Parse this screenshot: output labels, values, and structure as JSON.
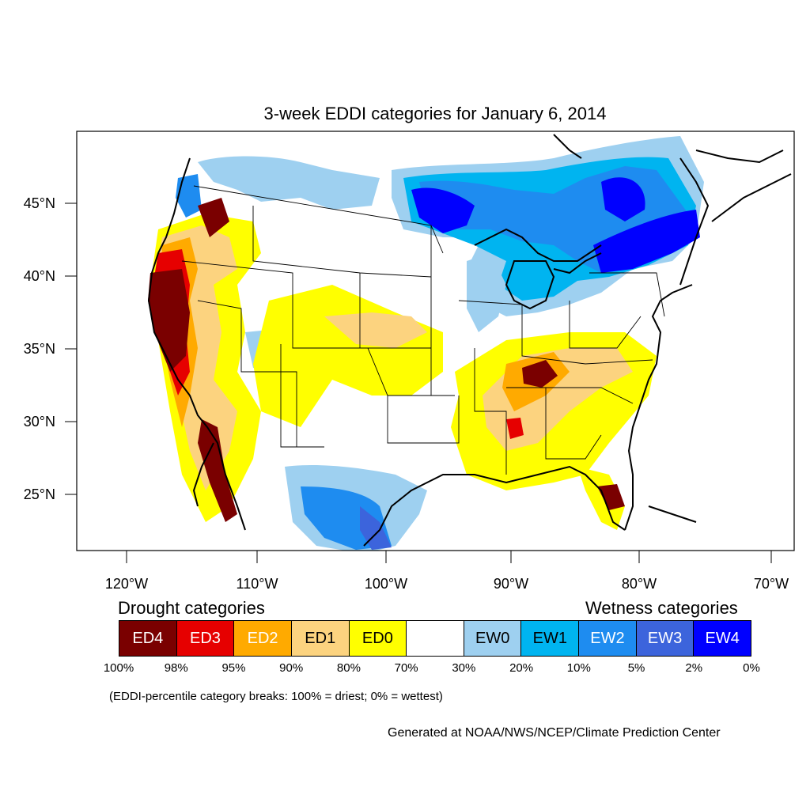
{
  "title": "3-week EDDI categories for January 6, 2014",
  "axes": {
    "lat_labels": [
      "45°N",
      "40°N",
      "35°N",
      "30°N",
      "25°N"
    ],
    "lon_labels": [
      "120°W",
      "110°W",
      "100°W",
      "90°W",
      "80°W",
      "70°W"
    ]
  },
  "legend": {
    "drought_heading": "Drought categories",
    "wetness_heading": "Wetness categories",
    "categories": [
      {
        "label": "ED4",
        "color": "#7a0000",
        "text_color": "#ffffff"
      },
      {
        "label": "ED3",
        "color": "#e60000",
        "text_color": "#ffffff"
      },
      {
        "label": "ED2",
        "color": "#ffaa00",
        "text_color": "#ffffff"
      },
      {
        "label": "ED1",
        "color": "#fcd37f",
        "text_color": "#000000"
      },
      {
        "label": "ED0",
        "color": "#ffff00",
        "text_color": "#000000"
      },
      {
        "label": "",
        "color": "#ffffff",
        "text_color": "#000000"
      },
      {
        "label": "EW0",
        "color": "#9ed0f0",
        "text_color": "#000000"
      },
      {
        "label": "EW1",
        "color": "#00b4f0",
        "text_color": "#000000"
      },
      {
        "label": "EW2",
        "color": "#1e8cf0",
        "text_color": "#ffffff"
      },
      {
        "label": "EW3",
        "color": "#3c64dc",
        "text_color": "#ffffff"
      },
      {
        "label": "EW4",
        "color": "#0000ff",
        "text_color": "#ffffff"
      }
    ],
    "breaks": [
      "100%",
      "98%",
      "95%",
      "90%",
      "80%",
      "70%",
      "30%",
      "20%",
      "10%",
      "5%",
      "2%",
      "0%"
    ]
  },
  "note": "(EDDI-percentile category breaks: 100% = driest; 0% = wettest)",
  "credit": "Generated at NOAA/NWS/NCEP/Climate Prediction Center"
}
